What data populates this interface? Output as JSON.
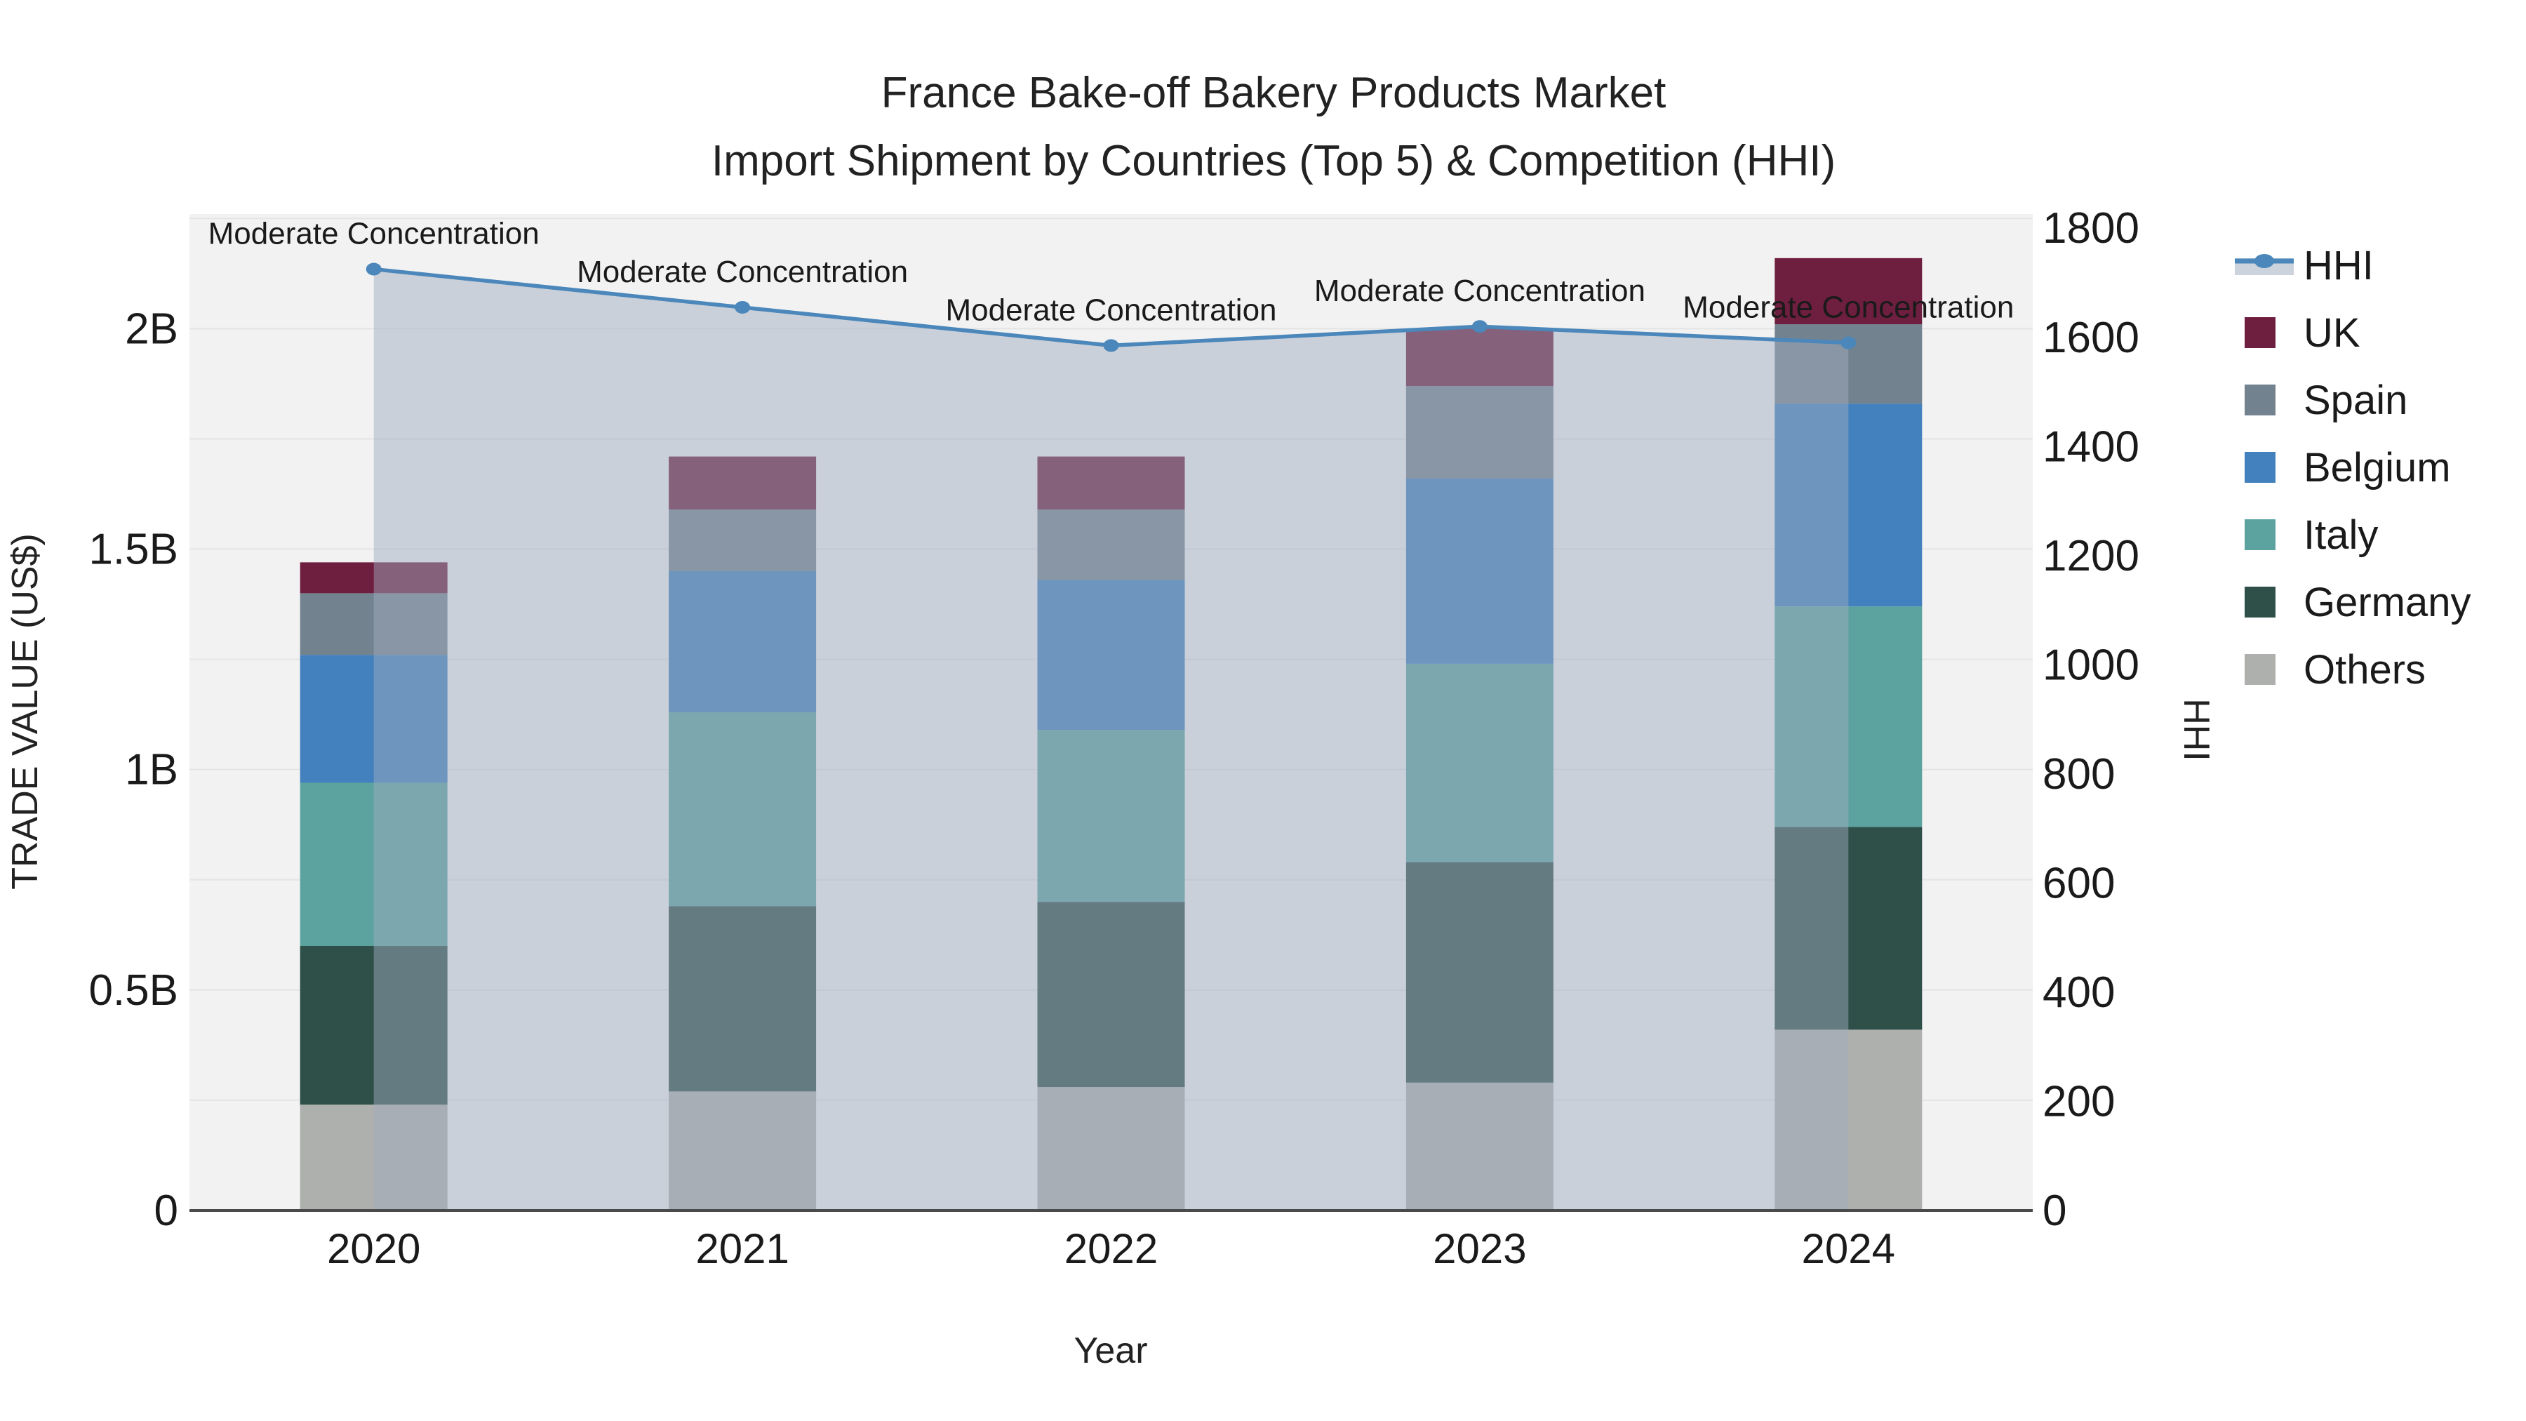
{
  "title": {
    "line1": "France Bake-off Bakery Products Market",
    "line2": "Import Shipment by Countries (Top 5) & Competition (HHI)"
  },
  "axes": {
    "left": {
      "title": "TRADE VALUE (US$)",
      "ticks": [
        {
          "label": "0",
          "value": 0
        },
        {
          "label": "0.5B",
          "value": 0.5
        },
        {
          "label": "1B",
          "value": 1
        },
        {
          "label": "1.5B",
          "value": 1.5
        },
        {
          "label": "2B",
          "value": 2
        }
      ]
    },
    "right": {
      "title": "HHI",
      "ticks": [
        {
          "label": "0",
          "value": 0
        },
        {
          "label": "200",
          "value": 200
        },
        {
          "label": "400",
          "value": 400
        },
        {
          "label": "600",
          "value": 600
        },
        {
          "label": "800",
          "value": 800
        },
        {
          "label": "1000",
          "value": 1000
        },
        {
          "label": "1200",
          "value": 1200
        },
        {
          "label": "1400",
          "value": 1400
        },
        {
          "label": "1600",
          "value": 1600
        },
        {
          "label": "1800",
          "value": 1800
        }
      ]
    },
    "x": {
      "title": "Year",
      "categories": [
        "2020",
        "2021",
        "2022",
        "2023",
        "2024"
      ]
    }
  },
  "chart_data": {
    "type": "bar+line",
    "title": "France Bake-off Bakery Products Market — Import Shipment by Countries (Top 5) & Competition (HHI)",
    "categories": [
      "2020",
      "2021",
      "2022",
      "2023",
      "2024"
    ],
    "value_unit": "billion US$",
    "stack_order_note": "series listed bottom-to-top of stack",
    "series": [
      {
        "name": "Others",
        "color": "#aeb0ad",
        "values": [
          0.24,
          0.27,
          0.28,
          0.29,
          0.41
        ]
      },
      {
        "name": "Germany",
        "color": "#2f5049",
        "values": [
          0.36,
          0.42,
          0.42,
          0.5,
          0.46
        ]
      },
      {
        "name": "Italy",
        "color": "#5ca3a0",
        "values": [
          0.37,
          0.44,
          0.39,
          0.45,
          0.5
        ]
      },
      {
        "name": "Belgium",
        "color": "#4281bd",
        "values": [
          0.29,
          0.32,
          0.34,
          0.42,
          0.46
        ]
      },
      {
        "name": "Spain",
        "color": "#73828f",
        "values": [
          0.14,
          0.14,
          0.16,
          0.21,
          0.18
        ]
      },
      {
        "name": "UK",
        "color": "#6e1e3e",
        "values": [
          0.07,
          0.12,
          0.12,
          0.13,
          0.15
        ]
      }
    ],
    "bar_totals": [
      1.47,
      1.71,
      1.71,
      2.0,
      2.16
    ],
    "line_series": {
      "name": "HHI",
      "color": "#4b87ba",
      "area_fill": "rgba(158,171,193,0.48)",
      "values": [
        1725,
        1655,
        1585,
        1620,
        1590
      ]
    },
    "annotations": [
      {
        "x": "2020",
        "text": "Moderate Concentration"
      },
      {
        "x": "2021",
        "text": "Moderate Concentration"
      },
      {
        "x": "2022",
        "text": "Moderate Concentration"
      },
      {
        "x": "2023",
        "text": "Moderate Concentration"
      },
      {
        "x": "2024",
        "text": "Moderate Concentration"
      }
    ],
    "ylim_left": [
      0,
      2.26
    ],
    "ylim_right": [
      0,
      1826
    ],
    "grid_step_left": 0.25,
    "grid_on": true,
    "plot_bg": "#f2f2f2",
    "grid_color": "#e4e4e6",
    "axisline_color": "#4a4a4a",
    "legend_position": "right"
  },
  "legend": {
    "items": [
      {
        "label": "HHI",
        "type": "line",
        "color": "#4b87ba",
        "band": "#cdd3dc"
      },
      {
        "label": "UK",
        "type": "swatch",
        "color": "#6e1e3e"
      },
      {
        "label": "Spain",
        "type": "swatch",
        "color": "#73828f"
      },
      {
        "label": "Belgium",
        "type": "swatch",
        "color": "#4281bd"
      },
      {
        "label": "Italy",
        "type": "swatch",
        "color": "#5ca3a0"
      },
      {
        "label": "Germany",
        "type": "swatch",
        "color": "#2f5049"
      },
      {
        "label": "Others",
        "type": "swatch",
        "color": "#aeb0ad"
      }
    ]
  }
}
